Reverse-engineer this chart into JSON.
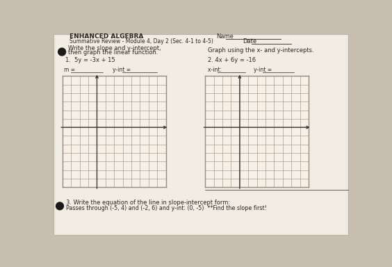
{
  "bg_color": "#c8bfb0",
  "paper_color": "#ede8df",
  "paper_inner_color": "#f2ede4",
  "title_line1": "ENHANCED ALGEBRA",
  "title_line2": "Summative Review - Module 4, Day 2 (Sec. 4-1 to 4-5)",
  "name_label": "Name",
  "date_label": "Date",
  "section_left_header1": "Write the slope and y-intercept,",
  "section_left_header2": "then graph the linear function.",
  "section_right_header": "Graph using the x- and y-intercepts.",
  "problem1": "1.  5y = -3x + 15",
  "problem2": "2. 4x + 6y = -16",
  "m_label": "m = ",
  "yint_label1": "y-int = ",
  "xint_label": "x-int: ",
  "yint_label2": "y-int = ",
  "problem3_line1": "3. Write the equation of the line in slope-intercept form:",
  "problem3_line2": "Passes through (-5, 4) and (-2, 6) and y-int: (0, -5)  **Find the slope first!",
  "bullet_color": "#1a1a1a",
  "text_color": "#2a2520",
  "grid_color": "#8B7B6B",
  "grid_line_color": "#9a8878",
  "axis_color": "#3a3530",
  "grid_bg": "#f5f0e8"
}
